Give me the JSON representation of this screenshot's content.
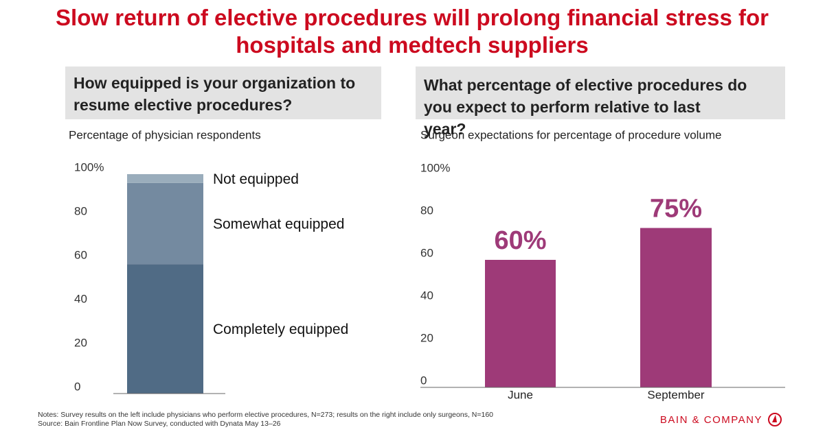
{
  "title": "Slow return of elective procedures will prolong financial stress for hospitals and medtech suppliers",
  "notes": "Notes: Survey results on the left include physicians who perform elective procedures, N=273; results on the right include only surgeons, N=160",
  "source": "Source: Bain Frontline Plan Now Survey, conducted with Dynata May 13–26",
  "brand": "BAIN & COMPANY",
  "chart_data": [
    {
      "type": "stacked_bar",
      "question": "How equipped is your organization to resume elective procedures?",
      "subtitle": "Percentage of physician respondents",
      "categories": [
        null
      ],
      "series": [
        {
          "name": "Completely equipped",
          "color": "#506b85",
          "values": [
            59
          ]
        },
        {
          "name": "Somewhat equipped",
          "color": "#748aa0",
          "values": [
            37
          ]
        },
        {
          "name": "Not equipped",
          "color": "#9aadbc",
          "values": [
            4
          ]
        }
      ],
      "ylim": [
        0,
        100
      ],
      "yticks": [
        0,
        20,
        40,
        60,
        80,
        {
          "value": 100,
          "label": "100%"
        }
      ],
      "grid": false
    },
    {
      "type": "bar",
      "question": "What percentage of elective procedures do you expect to perform relative to last year?",
      "subtitle": "Surgeon expectations for percentage of procedure volume",
      "categories": [
        "June",
        "September"
      ],
      "values": [
        60,
        75
      ],
      "value_labels": [
        "60%",
        "75%"
      ],
      "color": "#9e3a78",
      "ylim": [
        0,
        100
      ],
      "yticks": [
        0,
        20,
        40,
        60,
        80,
        {
          "value": 100,
          "label": "100%"
        }
      ],
      "grid": false
    }
  ]
}
